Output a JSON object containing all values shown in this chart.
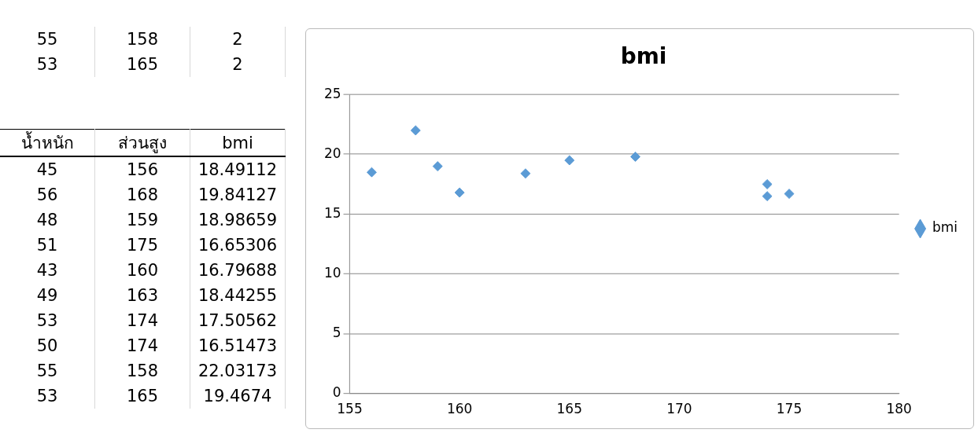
{
  "chart_data": [
    {
      "type": "other",
      "annotations": [
        "55",
        "158",
        "2",
        "53",
        "165",
        "2"
      ]
    },
    {
      "type": "other",
      "categories": [
        "น้ำหนัก",
        "ส่วนสูง",
        "bmi"
      ],
      "annotations": [
        "45",
        "156",
        "18.49112",
        "56",
        "168",
        "19.84127",
        "48",
        "159",
        "18.98659",
        "51",
        "175",
        "16.65306",
        "43",
        "160",
        "16.79688",
        "49",
        "163",
        "18.44255",
        "53",
        "174",
        "17.50562",
        "50",
        "174",
        "16.51473",
        "55",
        "158",
        "22.03173",
        "53",
        "165",
        "19.4674"
      ]
    },
    {
      "type": "scatter",
      "title": "bmi",
      "x": [
        156,
        168,
        159,
        175,
        160,
        163,
        174,
        174,
        158,
        165
      ],
      "series": [
        {
          "name": "bmi",
          "color": "#5b9bd5",
          "values": [
            18.5,
            19.8,
            19.0,
            16.7,
            16.8,
            18.4,
            17.5,
            16.5,
            22.0,
            19.5
          ]
        }
      ],
      "xlim": [
        155,
        180
      ],
      "xticks": [
        155,
        160,
        165,
        170,
        175,
        180
      ],
      "ylim": [
        0,
        25
      ],
      "yticks": [
        0,
        5,
        10,
        15,
        20,
        25
      ],
      "grid": "y",
      "legend": "right",
      "marker": "diamond"
    }
  ]
}
